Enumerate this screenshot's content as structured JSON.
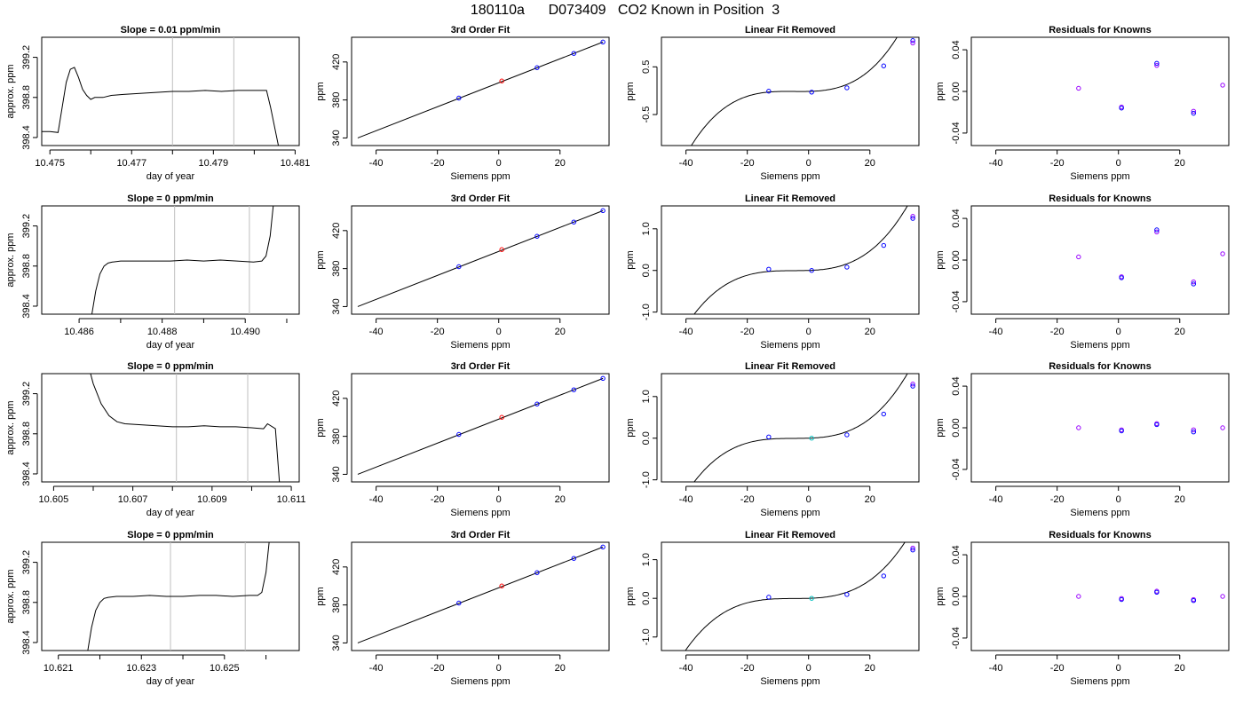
{
  "suptitle": "180110a      D073409   CO2 Known in Position  3",
  "colors": {
    "line": "#000000",
    "vline": "#bfbfbf",
    "point_blue": "#0000ff",
    "point_cyan": "#00bfbf",
    "point_violet": "#9900ff",
    "point_red": "#ff0000"
  },
  "chart_data": [
    {
      "row": 1,
      "type": "line",
      "title": "Slope =  0.01  ppm/min",
      "xlabel": "day of year",
      "ylabel": "approx. ppm",
      "xlim": [
        10.4748,
        10.4811
      ],
      "ylim": [
        398.32,
        399.4
      ],
      "xticks": [
        10.475,
        10.477,
        10.479,
        10.481
      ],
      "xtick_labels": [
        "10.475",
        "10.477",
        "10.479",
        "10.481"
      ],
      "xminor": [
        10.476,
        10.478,
        10.48
      ],
      "yticks": [
        398.4,
        398.8,
        399.2
      ],
      "ytick_labels": [
        "398.4",
        "398.8",
        "399.2"
      ],
      "vlines": [
        10.478,
        10.4795
      ],
      "series": [
        {
          "x": [
            10.4748,
            10.475,
            10.4752,
            10.4753,
            10.4754,
            10.4755,
            10.4756,
            10.4757,
            10.4758,
            10.4759,
            10.476,
            10.4761,
            10.4763,
            10.4765,
            10.4768,
            10.4772,
            10.4776,
            10.478,
            10.4784,
            10.4788,
            10.4792,
            10.4796,
            10.48,
            10.4803,
            10.4804,
            10.4806
          ],
          "y": [
            398.46,
            398.46,
            398.45,
            398.7,
            398.95,
            399.08,
            399.1,
            399.0,
            398.88,
            398.82,
            398.78,
            398.8,
            398.8,
            398.82,
            398.83,
            398.84,
            398.85,
            398.86,
            398.86,
            398.87,
            398.86,
            398.87,
            398.87,
            398.87,
            398.7,
            398.3
          ]
        }
      ]
    },
    {
      "row": 1,
      "type": "scatter",
      "title": "3rd Order Fit",
      "xlabel": "Siemens ppm",
      "ylabel": "ppm",
      "xlim": [
        -48,
        36
      ],
      "ylim": [
        332,
        446
      ],
      "xticks": [
        -40,
        -20,
        0,
        20
      ],
      "xtick_labels": [
        "-40",
        "-20",
        "0",
        "20"
      ],
      "yticks": [
        340,
        380,
        420
      ],
      "ytick_labels": [
        "340",
        "380",
        "420"
      ],
      "fit": {
        "x0": -46,
        "y0": 340,
        "x1": 34,
        "y1": 441
      },
      "points": {
        "x": [
          -13,
          1,
          12.5,
          24.5,
          34
        ],
        "y": [
          382,
          400,
          414,
          429,
          441
        ],
        "colors": [
          "#0000ff",
          "#ff0000",
          "#0000ff",
          "#0000ff",
          "#0000ff"
        ]
      }
    },
    {
      "row": 1,
      "type": "line",
      "title": "Linear Fit Removed",
      "xlabel": "Siemens ppm",
      "ylabel": "ppm",
      "xlim": [
        -48,
        36
      ],
      "ylim": [
        -1.15,
        1.12
      ],
      "xticks": [
        -40,
        -20,
        0,
        20
      ],
      "xtick_labels": [
        "-40",
        "-20",
        "0",
        "20"
      ],
      "yticks": [
        -0.5,
        0.5
      ],
      "ytick_labels": [
        "-0.5",
        "0.5"
      ],
      "curve": {
        "a": 3.05e-05,
        "b": 0.00043,
        "c": 0.0015,
        "d": -0.015,
        "xmin": -46,
        "xmax": 34
      },
      "points": {
        "x": [
          -13,
          1,
          12.5,
          24.5,
          34,
          34
        ],
        "y": [
          -0.01,
          -0.03,
          0.06,
          0.52,
          1.05,
          1.0
        ],
        "colors": [
          "#0000ff",
          "#0000ff",
          "#0000ff",
          "#0000ff",
          "#0000ff",
          "#9900ff"
        ]
      }
    },
    {
      "row": 1,
      "type": "scatter",
      "title": "Residuals for Knowns",
      "xlabel": "Siemens ppm",
      "ylabel": "ppm",
      "xlim": [
        -48,
        36
      ],
      "ylim": [
        -0.052,
        0.052
      ],
      "xticks": [
        -40,
        -20,
        0,
        20
      ],
      "xtick_labels": [
        "-40",
        "-20",
        "0",
        "20"
      ],
      "yticks": [
        -0.04,
        0,
        0.04
      ],
      "ytick_labels": [
        "-0.04",
        "0.00",
        "0.04"
      ],
      "points": {
        "x": [
          -13,
          1,
          1,
          12.5,
          12.5,
          24.5,
          24.5,
          34
        ],
        "y": [
          0.003,
          -0.015,
          -0.016,
          0.025,
          0.027,
          -0.019,
          -0.021,
          0.006
        ],
        "colors": [
          "#9900ff",
          "#9900ff",
          "#0000ff",
          "#9900ff",
          "#0000ff",
          "#9900ff",
          "#0000ff",
          "#9900ff"
        ]
      }
    },
    {
      "row": 2,
      "type": "line",
      "title": "Slope =  0  ppm/min",
      "xlabel": "day of year",
      "ylabel": "approx. ppm",
      "xlim": [
        10.4851,
        10.4913
      ],
      "ylim": [
        398.32,
        399.4
      ],
      "xticks": [
        10.486,
        10.488,
        10.49
      ],
      "xtick_labels": [
        "10.486",
        "10.488",
        "10.490"
      ],
      "xminor": [
        10.487,
        10.489,
        10.491
      ],
      "yticks": [
        398.4,
        398.8,
        399.2
      ],
      "ytick_labels": [
        "398.4",
        "398.8",
        "399.2"
      ],
      "vlines": [
        10.4883,
        10.4901
      ],
      "series": [
        {
          "x": [
            10.4863,
            10.4864,
            10.4865,
            10.4866,
            10.4867,
            10.4868,
            10.487,
            10.4874,
            10.4878,
            10.4882,
            10.4886,
            10.489,
            10.4894,
            10.4898,
            10.4902,
            10.4904,
            10.4905,
            10.4906,
            10.4907
          ],
          "y": [
            398.3,
            398.55,
            398.72,
            398.8,
            398.83,
            398.84,
            398.85,
            398.85,
            398.85,
            398.85,
            398.86,
            398.85,
            398.86,
            398.85,
            398.84,
            398.85,
            398.9,
            399.1,
            399.5
          ]
        }
      ]
    },
    {
      "row": 2,
      "type": "scatter",
      "title": "3rd Order Fit",
      "xlabel": "Siemens ppm",
      "ylabel": "ppm",
      "xlim": [
        -48,
        36
      ],
      "ylim": [
        332,
        446
      ],
      "xticks": [
        -40,
        -20,
        0,
        20
      ],
      "xtick_labels": [
        "-40",
        "-20",
        "0",
        "20"
      ],
      "yticks": [
        340,
        380,
        420
      ],
      "ytick_labels": [
        "340",
        "380",
        "420"
      ],
      "fit": {
        "x0": -46,
        "y0": 340,
        "x1": 34,
        "y1": 441
      },
      "points": {
        "x": [
          -13,
          1,
          12.5,
          24.5,
          34
        ],
        "y": [
          382,
          400,
          414,
          429,
          441
        ],
        "colors": [
          "#0000ff",
          "#ff0000",
          "#0000ff",
          "#0000ff",
          "#0000ff"
        ]
      }
    },
    {
      "row": 2,
      "type": "line",
      "title": "Linear Fit Removed",
      "xlabel": "Siemens ppm",
      "ylabel": "ppm",
      "xlim": [
        -48,
        36
      ],
      "ylim": [
        -1.05,
        1.55
      ],
      "xticks": [
        -40,
        -20,
        0,
        20
      ],
      "xtick_labels": [
        "-40",
        "-20",
        "0",
        "20"
      ],
      "yticks": [
        -1.0,
        0.0,
        1.0
      ],
      "ytick_labels": [
        "-1.0",
        "0.0",
        "1.0"
      ],
      "curve": {
        "a": 3.02e-05,
        "b": 0.00044,
        "c": 0.0025,
        "d": 0.0,
        "xmin": -46,
        "xmax": 34
      },
      "points": {
        "x": [
          -13,
          1,
          12.5,
          24.5,
          34,
          34
        ],
        "y": [
          0.03,
          0.0,
          0.08,
          0.6,
          1.3,
          1.25
        ],
        "colors": [
          "#0000ff",
          "#0000ff",
          "#0000ff",
          "#0000ff",
          "#9900ff",
          "#0000ff"
        ]
      }
    },
    {
      "row": 2,
      "type": "scatter",
      "title": "Residuals for Knowns",
      "xlabel": "Siemens ppm",
      "ylabel": "ppm",
      "xlim": [
        -48,
        36
      ],
      "ylim": [
        -0.052,
        0.052
      ],
      "xticks": [
        -40,
        -20,
        0,
        20
      ],
      "xtick_labels": [
        "-40",
        "-20",
        "0",
        "20"
      ],
      "yticks": [
        -0.04,
        0,
        0.04
      ],
      "ytick_labels": [
        "-0.04",
        "0.00",
        "0.04"
      ],
      "points": {
        "x": [
          -13,
          1,
          1,
          12.5,
          12.5,
          24.5,
          24.5,
          34
        ],
        "y": [
          0.003,
          -0.016,
          -0.017,
          0.027,
          0.029,
          -0.021,
          -0.023,
          0.006
        ],
        "colors": [
          "#9900ff",
          "#9900ff",
          "#0000ff",
          "#9900ff",
          "#0000ff",
          "#9900ff",
          "#0000ff",
          "#9900ff"
        ]
      }
    },
    {
      "row": 3,
      "type": "line",
      "title": "Slope =  0  ppm/min",
      "xlabel": "day of year",
      "ylabel": "approx. ppm",
      "xlim": [
        10.6047,
        10.6112
      ],
      "ylim": [
        398.32,
        399.4
      ],
      "xticks": [
        10.605,
        10.607,
        10.609,
        10.611
      ],
      "xtick_labels": [
        "10.605",
        "10.607",
        "10.609",
        "10.611"
      ],
      "xminor": [
        10.606,
        10.608,
        10.61
      ],
      "yticks": [
        398.4,
        398.8,
        399.2
      ],
      "ytick_labels": [
        "398.4",
        "398.8",
        "399.2"
      ],
      "vlines": [
        10.6081,
        10.6099
      ],
      "series": [
        {
          "x": [
            10.6059,
            10.606,
            10.6062,
            10.6064,
            10.6066,
            10.6068,
            10.6072,
            10.6076,
            10.608,
            10.6084,
            10.6088,
            10.6092,
            10.6096,
            10.61,
            10.6103,
            10.6104,
            10.6106,
            10.6107
          ],
          "y": [
            399.45,
            399.3,
            399.1,
            398.98,
            398.92,
            398.9,
            398.89,
            398.88,
            398.87,
            398.87,
            398.88,
            398.87,
            398.87,
            398.86,
            398.85,
            398.9,
            398.85,
            398.32
          ]
        }
      ]
    },
    {
      "row": 3,
      "type": "scatter",
      "title": "3rd Order Fit",
      "xlabel": "Siemens ppm",
      "ylabel": "ppm",
      "xlim": [
        -48,
        36
      ],
      "ylim": [
        332,
        446
      ],
      "xticks": [
        -40,
        -20,
        0,
        20
      ],
      "xtick_labels": [
        "-40",
        "-20",
        "0",
        "20"
      ],
      "yticks": [
        340,
        380,
        420
      ],
      "ytick_labels": [
        "340",
        "380",
        "420"
      ],
      "fit": {
        "x0": -46,
        "y0": 340,
        "x1": 34,
        "y1": 441
      },
      "points": {
        "x": [
          -13,
          1,
          12.5,
          24.5,
          34
        ],
        "y": [
          382,
          400,
          414,
          429,
          441
        ],
        "colors": [
          "#0000ff",
          "#ff0000",
          "#0000ff",
          "#0000ff",
          "#0000ff"
        ]
      }
    },
    {
      "row": 3,
      "type": "line",
      "title": "Linear Fit Removed",
      "xlabel": "Siemens ppm",
      "ylabel": "ppm",
      "xlim": [
        -48,
        36
      ],
      "ylim": [
        -1.05,
        1.55
      ],
      "xticks": [
        -40,
        -20,
        0,
        20
      ],
      "xtick_labels": [
        "-40",
        "-20",
        "0",
        "20"
      ],
      "yticks": [
        -1.0,
        0.0,
        1.0
      ],
      "ytick_labels": [
        "-1.0",
        "0.0",
        "1.0"
      ],
      "curve": {
        "a": 3.02e-05,
        "b": 0.00044,
        "c": 0.0025,
        "d": 0.0,
        "xmin": -46,
        "xmax": 34
      },
      "points": {
        "x": [
          -13,
          1,
          12.5,
          24.5,
          34,
          34
        ],
        "y": [
          0.03,
          0.0,
          0.08,
          0.58,
          1.3,
          1.25
        ],
        "colors": [
          "#0000ff",
          "#00bfbf",
          "#0000ff",
          "#0000ff",
          "#9900ff",
          "#0000ff"
        ]
      }
    },
    {
      "row": 3,
      "type": "scatter",
      "title": "Residuals for Knowns",
      "xlabel": "Siemens ppm",
      "ylabel": "ppm",
      "xlim": [
        -48,
        36
      ],
      "ylim": [
        -0.052,
        0.052
      ],
      "xticks": [
        -40,
        -20,
        0,
        20
      ],
      "xtick_labels": [
        "-40",
        "-20",
        "0",
        "20"
      ],
      "yticks": [
        -0.04,
        0,
        0.04
      ],
      "ytick_labels": [
        "-0.04",
        "0.00",
        "0.04"
      ],
      "points": {
        "x": [
          -13,
          1,
          1,
          12.5,
          12.5,
          24.5,
          24.5,
          34
        ],
        "y": [
          0.0,
          -0.002,
          -0.003,
          0.004,
          0.003,
          -0.002,
          -0.004,
          0.0
        ],
        "colors": [
          "#9900ff",
          "#9900ff",
          "#0000ff",
          "#9900ff",
          "#0000ff",
          "#9900ff",
          "#0000ff",
          "#9900ff"
        ]
      }
    },
    {
      "row": 4,
      "type": "line",
      "title": "Slope =  0  ppm/min",
      "xlabel": "day of year",
      "ylabel": "approx. ppm",
      "xlim": [
        10.6206,
        10.6268
      ],
      "ylim": [
        398.32,
        399.4
      ],
      "xticks": [
        10.621,
        10.623,
        10.625
      ],
      "xtick_labels": [
        "10.621",
        "10.623",
        "10.625"
      ],
      "xminor": [
        10.622,
        10.624,
        10.626
      ],
      "yticks": [
        398.4,
        398.8,
        399.2
      ],
      "ytick_labels": [
        "398.4",
        "398.8",
        "399.2"
      ],
      "vlines": [
        10.6237,
        10.6255
      ],
      "series": [
        {
          "x": [
            10.6217,
            10.6218,
            10.6219,
            10.622,
            10.6221,
            10.6222,
            10.6224,
            10.6228,
            10.6232,
            10.6236,
            10.624,
            10.6244,
            10.6248,
            10.6252,
            10.6256,
            10.6258,
            10.6259,
            10.626,
            10.6261
          ],
          "y": [
            398.3,
            398.55,
            398.72,
            398.8,
            398.84,
            398.85,
            398.86,
            398.86,
            398.87,
            398.86,
            398.86,
            398.87,
            398.87,
            398.86,
            398.87,
            398.87,
            398.9,
            399.1,
            399.5
          ]
        }
      ]
    },
    {
      "row": 4,
      "type": "scatter",
      "title": "3rd Order Fit",
      "xlabel": "Siemens ppm",
      "ylabel": "ppm",
      "xlim": [
        -48,
        36
      ],
      "ylim": [
        332,
        446
      ],
      "xticks": [
        -40,
        -20,
        0,
        20
      ],
      "xtick_labels": [
        "-40",
        "-20",
        "0",
        "20"
      ],
      "yticks": [
        340,
        380,
        420
      ],
      "ytick_labels": [
        "340",
        "380",
        "420"
      ],
      "fit": {
        "x0": -46,
        "y0": 340,
        "x1": 34,
        "y1": 441
      },
      "points": {
        "x": [
          -13,
          1,
          12.5,
          24.5,
          34
        ],
        "y": [
          382,
          400,
          414,
          429,
          441
        ],
        "colors": [
          "#0000ff",
          "#ff0000",
          "#0000ff",
          "#0000ff",
          "#0000ff"
        ]
      }
    },
    {
      "row": 4,
      "type": "line",
      "title": "Linear Fit Removed",
      "xlabel": "Siemens ppm",
      "ylabel": "ppm",
      "xlim": [
        -48,
        36
      ],
      "ylim": [
        -1.35,
        1.45
      ],
      "xticks": [
        -40,
        -20,
        0,
        20
      ],
      "xtick_labels": [
        "-40",
        "-20",
        "0",
        "20"
      ],
      "yticks": [
        -1.0,
        0.0,
        1.0
      ],
      "ytick_labels": [
        "-1.0",
        "0.0",
        "1.0"
      ],
      "curve": {
        "a": 3.02e-05,
        "b": 0.00044,
        "c": 0.0025,
        "d": 0.0,
        "xmin": -46,
        "xmax": 34
      },
      "points": {
        "x": [
          -13,
          1,
          12.5,
          24.5,
          34,
          34
        ],
        "y": [
          0.03,
          0.0,
          0.1,
          0.58,
          1.3,
          1.25
        ],
        "colors": [
          "#0000ff",
          "#00bfbf",
          "#0000ff",
          "#0000ff",
          "#9900ff",
          "#0000ff"
        ]
      }
    },
    {
      "row": 4,
      "type": "scatter",
      "title": "Residuals for Knowns",
      "xlabel": "Siemens ppm",
      "ylabel": "ppm",
      "xlim": [
        -48,
        36
      ],
      "ylim": [
        -0.052,
        0.052
      ],
      "xticks": [
        -40,
        -20,
        0,
        20
      ],
      "xtick_labels": [
        "-40",
        "-20",
        "0",
        "20"
      ],
      "yticks": [
        -0.04,
        0,
        0.04
      ],
      "ytick_labels": [
        "-0.04",
        "0.00",
        "0.04"
      ],
      "points": {
        "x": [
          -13,
          1,
          1,
          12.5,
          12.5,
          24.5,
          24.5,
          34
        ],
        "y": [
          0.0,
          -0.002,
          -0.003,
          0.005,
          0.004,
          -0.003,
          -0.004,
          0.0
        ],
        "colors": [
          "#9900ff",
          "#9900ff",
          "#0000ff",
          "#9900ff",
          "#0000ff",
          "#9900ff",
          "#0000ff",
          "#9900ff"
        ]
      }
    }
  ]
}
